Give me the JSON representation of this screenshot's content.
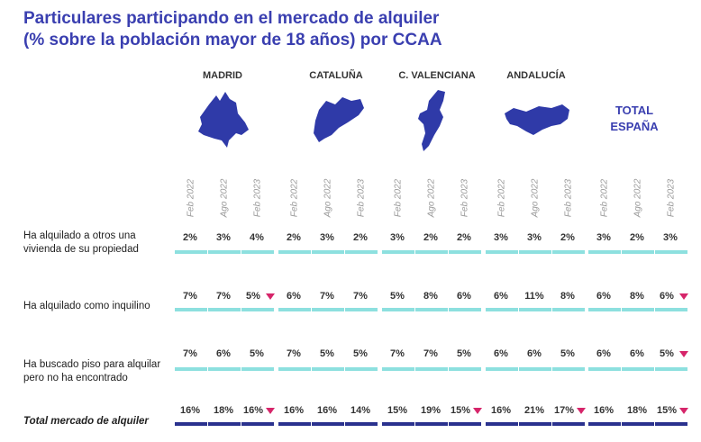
{
  "title": {
    "line1": "Particulares participando en el mercado de alquiler",
    "line2": "(% sobre la población mayor de 18 años) por CCAA"
  },
  "regions": [
    {
      "name": "MADRID",
      "map_icon": "madrid-map-icon"
    },
    {
      "name": "CATALUÑA",
      "map_icon": "cataluna-map-icon"
    },
    {
      "name": "C. VALENCIANA",
      "map_icon": "valencia-map-icon"
    },
    {
      "name": "ANDALUCÍA",
      "map_icon": "andalucia-map-icon"
    }
  ],
  "total_label": {
    "line1": "TOTAL",
    "line2": "ESPAÑA"
  },
  "periods": [
    "Feb 2022",
    "Ago 2022",
    "Feb 2023"
  ],
  "rows": [
    {
      "label": "Ha alquilado a otros una vivienda de su propiedad",
      "label_line1": "Ha alquilado a otros una",
      "label_line2": "vivienda de su propiedad"
    },
    {
      "label": "Ha alquilado como inquilino",
      "label_line1": "Ha alquilado como inquilino",
      "label_line2": ""
    },
    {
      "label": "Ha buscado piso para alquilar pero no ha encontrado",
      "label_line1": "Ha buscado piso para alquilar",
      "label_line2": "pero no ha encontrado"
    },
    {
      "label": "Total mercado de alquiler",
      "label_line1": "Total mercado de alquiler",
      "label_line2": ""
    }
  ],
  "colors": {
    "title": "#3a3fb0",
    "map_fill": "#2f3aa8",
    "bar_light": "#8de0df",
    "bar_total": "#2a318e",
    "down_marker": "#d6256a"
  },
  "chart_data": {
    "type": "table",
    "title": "Particulares participando en el mercado de alquiler (% sobre la población mayor de 18 años) por CCAA",
    "groups": [
      "MADRID",
      "CATALUÑA",
      "C. VALENCIANA",
      "ANDALUCÍA",
      "TOTAL ESPAÑA"
    ],
    "periods": [
      "Feb 2022",
      "Ago 2022",
      "Feb 2023"
    ],
    "unit": "%",
    "series": [
      {
        "name": "Ha alquilado a otros una vivienda de su propiedad",
        "values": [
          [
            2,
            3,
            4
          ],
          [
            2,
            3,
            2
          ],
          [
            3,
            2,
            2
          ],
          [
            3,
            3,
            2
          ],
          [
            3,
            2,
            3
          ]
        ],
        "down_markers": [
          [
            false,
            false,
            false
          ],
          [
            false,
            false,
            false
          ],
          [
            false,
            false,
            false
          ],
          [
            false,
            false,
            false
          ],
          [
            false,
            false,
            false
          ]
        ]
      },
      {
        "name": "Ha alquilado como inquilino",
        "values": [
          [
            7,
            7,
            5
          ],
          [
            6,
            7,
            7
          ],
          [
            5,
            8,
            6
          ],
          [
            6,
            11,
            8
          ],
          [
            6,
            8,
            6
          ]
        ],
        "down_markers": [
          [
            false,
            false,
            true
          ],
          [
            false,
            false,
            false
          ],
          [
            false,
            false,
            false
          ],
          [
            false,
            false,
            false
          ],
          [
            false,
            false,
            true
          ]
        ]
      },
      {
        "name": "Ha buscado piso para alquilar pero no ha encontrado",
        "values": [
          [
            7,
            6,
            5
          ],
          [
            7,
            5,
            5
          ],
          [
            7,
            7,
            5
          ],
          [
            6,
            6,
            5
          ],
          [
            6,
            6,
            5
          ]
        ],
        "down_markers": [
          [
            false,
            false,
            false
          ],
          [
            false,
            false,
            false
          ],
          [
            false,
            false,
            false
          ],
          [
            false,
            false,
            false
          ],
          [
            false,
            false,
            true
          ]
        ]
      },
      {
        "name": "Total mercado de alquiler",
        "values": [
          [
            16,
            18,
            16
          ],
          [
            16,
            16,
            14
          ],
          [
            15,
            19,
            15
          ],
          [
            16,
            21,
            17
          ],
          [
            16,
            18,
            15
          ]
        ],
        "down_markers": [
          [
            false,
            false,
            true
          ],
          [
            false,
            false,
            false
          ],
          [
            false,
            false,
            true
          ],
          [
            false,
            false,
            true
          ],
          [
            false,
            false,
            true
          ]
        ]
      }
    ]
  }
}
